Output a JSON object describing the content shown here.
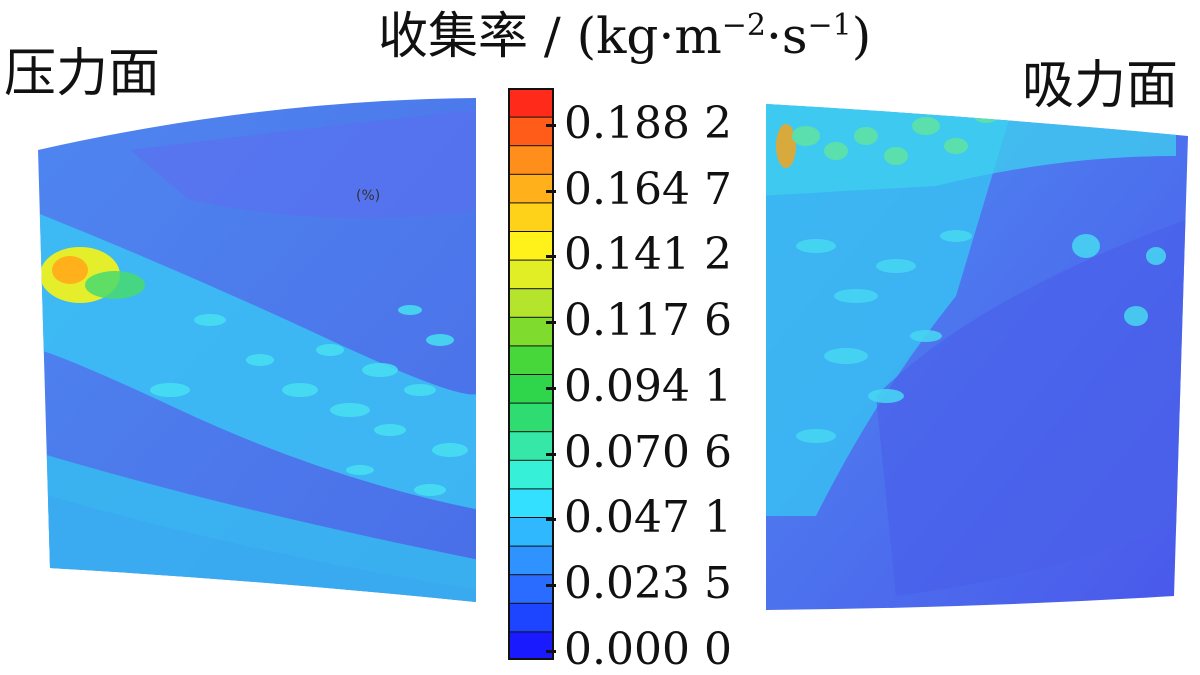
{
  "title": {
    "main": "收集率 / (kg·m",
    "exp1": "−2",
    "mid": "·s",
    "exp2": "−1",
    "close": ")"
  },
  "labels": {
    "left": "压力面",
    "right": "吸力面",
    "inset": "(%)"
  },
  "colorbar": {
    "ticks": [
      "0.188 2",
      "0.164 7",
      "0.141 2",
      "0.117 6",
      "0.094 1",
      "0.070 6",
      "0.047 1",
      "0.023 5",
      "0.000 0"
    ],
    "colors": [
      "#1a1aff",
      "#1d44ff",
      "#2a6cff",
      "#2f93ff",
      "#30b8ff",
      "#34e0ff",
      "#37f0d8",
      "#35e8a8",
      "#2edc72",
      "#2fd64b",
      "#48d73a",
      "#7fdc2f",
      "#b4e42b",
      "#e2ee25",
      "#fff21a",
      "#ffd21a",
      "#ffb01a",
      "#ff8e1a",
      "#ff5c1a",
      "#ff2a1a"
    ],
    "accent": "#e8171b"
  }
}
